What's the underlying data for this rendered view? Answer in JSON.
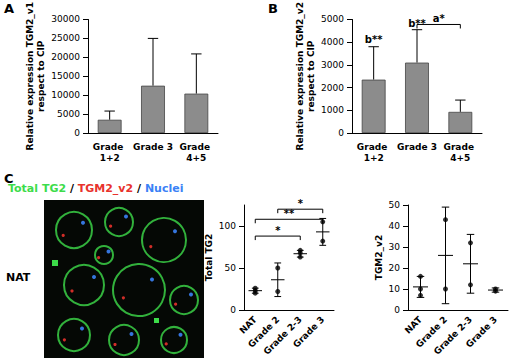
{
  "panel_labels": [
    "A",
    "B",
    "C"
  ],
  "image": {
    "label": "NAT",
    "legend": [
      {
        "text": "Total TG2",
        "color": "#3ddc4a"
      },
      {
        "text": "TGM2_v2",
        "color": "#e8322c"
      },
      {
        "text": "Nuclei",
        "color": "#3b82f6"
      }
    ],
    "separator": " / "
  },
  "chart_data": [
    {
      "type": "bar",
      "categories": [
        "Grade 1+2",
        "Grade 3",
        "Grade 4+5"
      ],
      "values": [
        3500,
        12500,
        10400
      ],
      "errors": [
        2300,
        12500,
        10500
      ],
      "ylabel": "Relative expression TGM2_v1\nrespect to CIP",
      "ylim": [
        0,
        30000
      ],
      "yticks": [
        0,
        5000,
        10000,
        15000,
        20000,
        25000,
        30000
      ],
      "color": "#8c8c8c",
      "grid": false
    },
    {
      "type": "bar",
      "categories": [
        "Grade 1+2",
        "Grade 3",
        "Grade 4+5"
      ],
      "values": [
        2350,
        3100,
        930
      ],
      "errors": [
        1450,
        1450,
        520
      ],
      "ylabel": "Relative expression TGM2_v2\nrespect to CIP",
      "ylim": [
        0,
        5000
      ],
      "yticks": [
        0,
        1000,
        2000,
        3000,
        4000,
        5000
      ],
      "color": "#8c8c8c",
      "grid": false,
      "annotations": [
        {
          "text": "b**",
          "x": "Grade 1+2",
          "y": 3900
        },
        {
          "text": "b**",
          "x": "Grade 3",
          "y": 4620
        },
        {
          "text": "a*",
          "from": "Grade 3",
          "to": "Grade 4+5",
          "y": 4780
        }
      ]
    },
    {
      "type": "dot",
      "categories": [
        "NAT",
        "Grade 2",
        "Grade 2-3",
        "Grade 3"
      ],
      "values": [
        [
          20,
          23,
          26
        ],
        [
          22,
          50
        ],
        [
          63,
          68,
          71
        ],
        [
          82,
          105
        ]
      ],
      "means": [
        23,
        36,
        67,
        93
      ],
      "errors": [
        3,
        20,
        4,
        16
      ],
      "ylabel": "Total TG2",
      "ylim": [
        0,
        125
      ],
      "yticks": [
        0,
        50,
        100
      ],
      "color": "#000000",
      "grid": false,
      "annotations": [
        {
          "text": "*",
          "from": "NAT",
          "to": "Grade 2-3",
          "y": 88
        },
        {
          "text": "**",
          "from": "NAT",
          "to": "Grade 3",
          "y": 108
        },
        {
          "text": "*",
          "from": "Grade 2",
          "to": "Grade 3",
          "y": 120
        }
      ]
    },
    {
      "type": "dot",
      "categories": [
        "NAT",
        "Grade 2",
        "Grade 2-3",
        "Grade 3"
      ],
      "values": [
        [
          7,
          10,
          16
        ],
        [
          10,
          43
        ],
        [
          12,
          32
        ],
        [
          9,
          10
        ]
      ],
      "means": [
        11,
        26,
        22,
        9.5
      ],
      "errors": [
        5,
        23,
        14,
        1
      ],
      "ylabel": "TGM2_v2",
      "ylim": [
        0,
        50
      ],
      "yticks": [
        0,
        10,
        20,
        30,
        40,
        50
      ],
      "color": "#000000",
      "grid": false
    }
  ]
}
